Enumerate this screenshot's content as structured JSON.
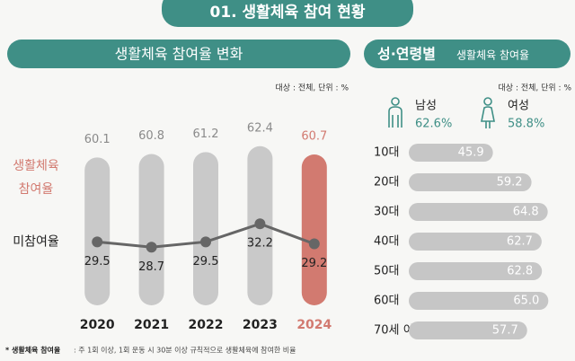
{
  "header": {
    "title": "01. 생활체육 참여 현황"
  },
  "footnote": {
    "term": "* 생활체육 참여율",
    "text": ": 주 1회 이상, 1회 운동 시 30분 이상 규칙적으로  생활체육에 참여한 비율"
  },
  "gender": [
    {
      "label": "남성",
      "value": "62.6%"
    },
    {
      "label": "여성",
      "value": "58.8%"
    }
  ],
  "chart_data": [
    {
      "type": "bar_line",
      "title": "생활체육 참여율 변화",
      "note": "대상 : 전체, 단위 : %",
      "categories": [
        "2020",
        "2021",
        "2022",
        "2023",
        "2024"
      ],
      "series": [
        {
          "name": "생활체육 참여율",
          "color": "#c9c9c9",
          "colors": [
            "#c9c9c9",
            "#c9c9c9",
            "#c9c9c9",
            "#c9c9c9",
            "#d27a70"
          ],
          "values": [
            60.1,
            60.8,
            61.2,
            62.4,
            60.7
          ]
        },
        {
          "name": "미참여율",
          "color": "#666666",
          "axis": "y2",
          "values": [
            29.5,
            28.7,
            29.5,
            32.2,
            29.2
          ]
        }
      ],
      "ylim": [
        30,
        64
      ],
      "y2lim": [
        20,
        45
      ]
    },
    {
      "type": "hbar",
      "title": "성·연령별",
      "subtitle": "생활체육 참여율",
      "note": "대상 : 전체, 단위 : %",
      "categories": [
        "10대",
        "20대",
        "30대",
        "40대",
        "50대",
        "60대",
        "70세 이상"
      ],
      "values": [
        45.9,
        59.2,
        64.8,
        62.7,
        62.8,
        65.0,
        57.7
      ],
      "value_labels": [
        "45.9",
        "59.2",
        "64.8",
        "62.7",
        "62.8",
        "65.0",
        "57.7"
      ],
      "color": "#c6c6c6",
      "xlim": [
        20,
        68
      ]
    }
  ]
}
